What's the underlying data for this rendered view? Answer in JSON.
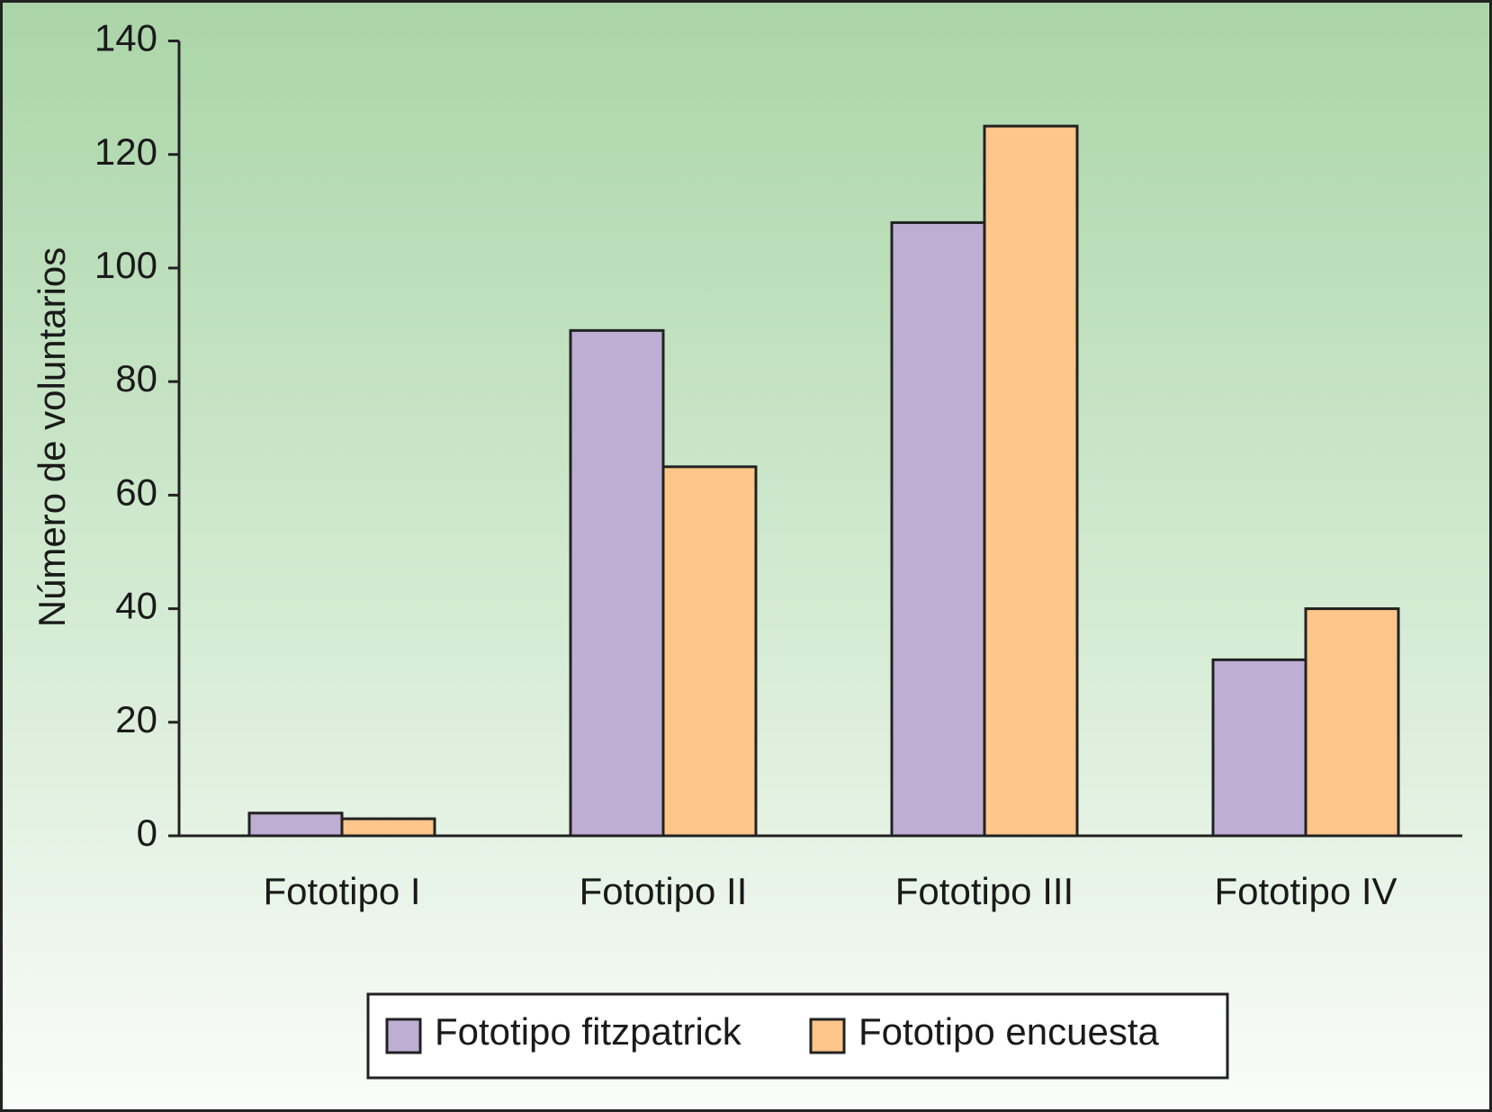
{
  "chart_data": {
    "type": "bar",
    "y_label": "Número de voluntarios",
    "categories": [
      "Fototipo I",
      "Fototipo II",
      "Fototipo III",
      "Fototipo IV"
    ],
    "series": [
      {
        "name": "Fototipo fitzpatrick",
        "color": "#bfaed4",
        "values": [
          4,
          89,
          108,
          31
        ]
      },
      {
        "name": "Fototipo encuesta",
        "color": "#fec68a",
        "values": [
          3,
          65,
          125,
          40
        ]
      }
    ],
    "ylim": [
      0,
      140
    ],
    "yticks": [
      0,
      20,
      40,
      60,
      80,
      100,
      120,
      140
    ],
    "grid": false
  }
}
